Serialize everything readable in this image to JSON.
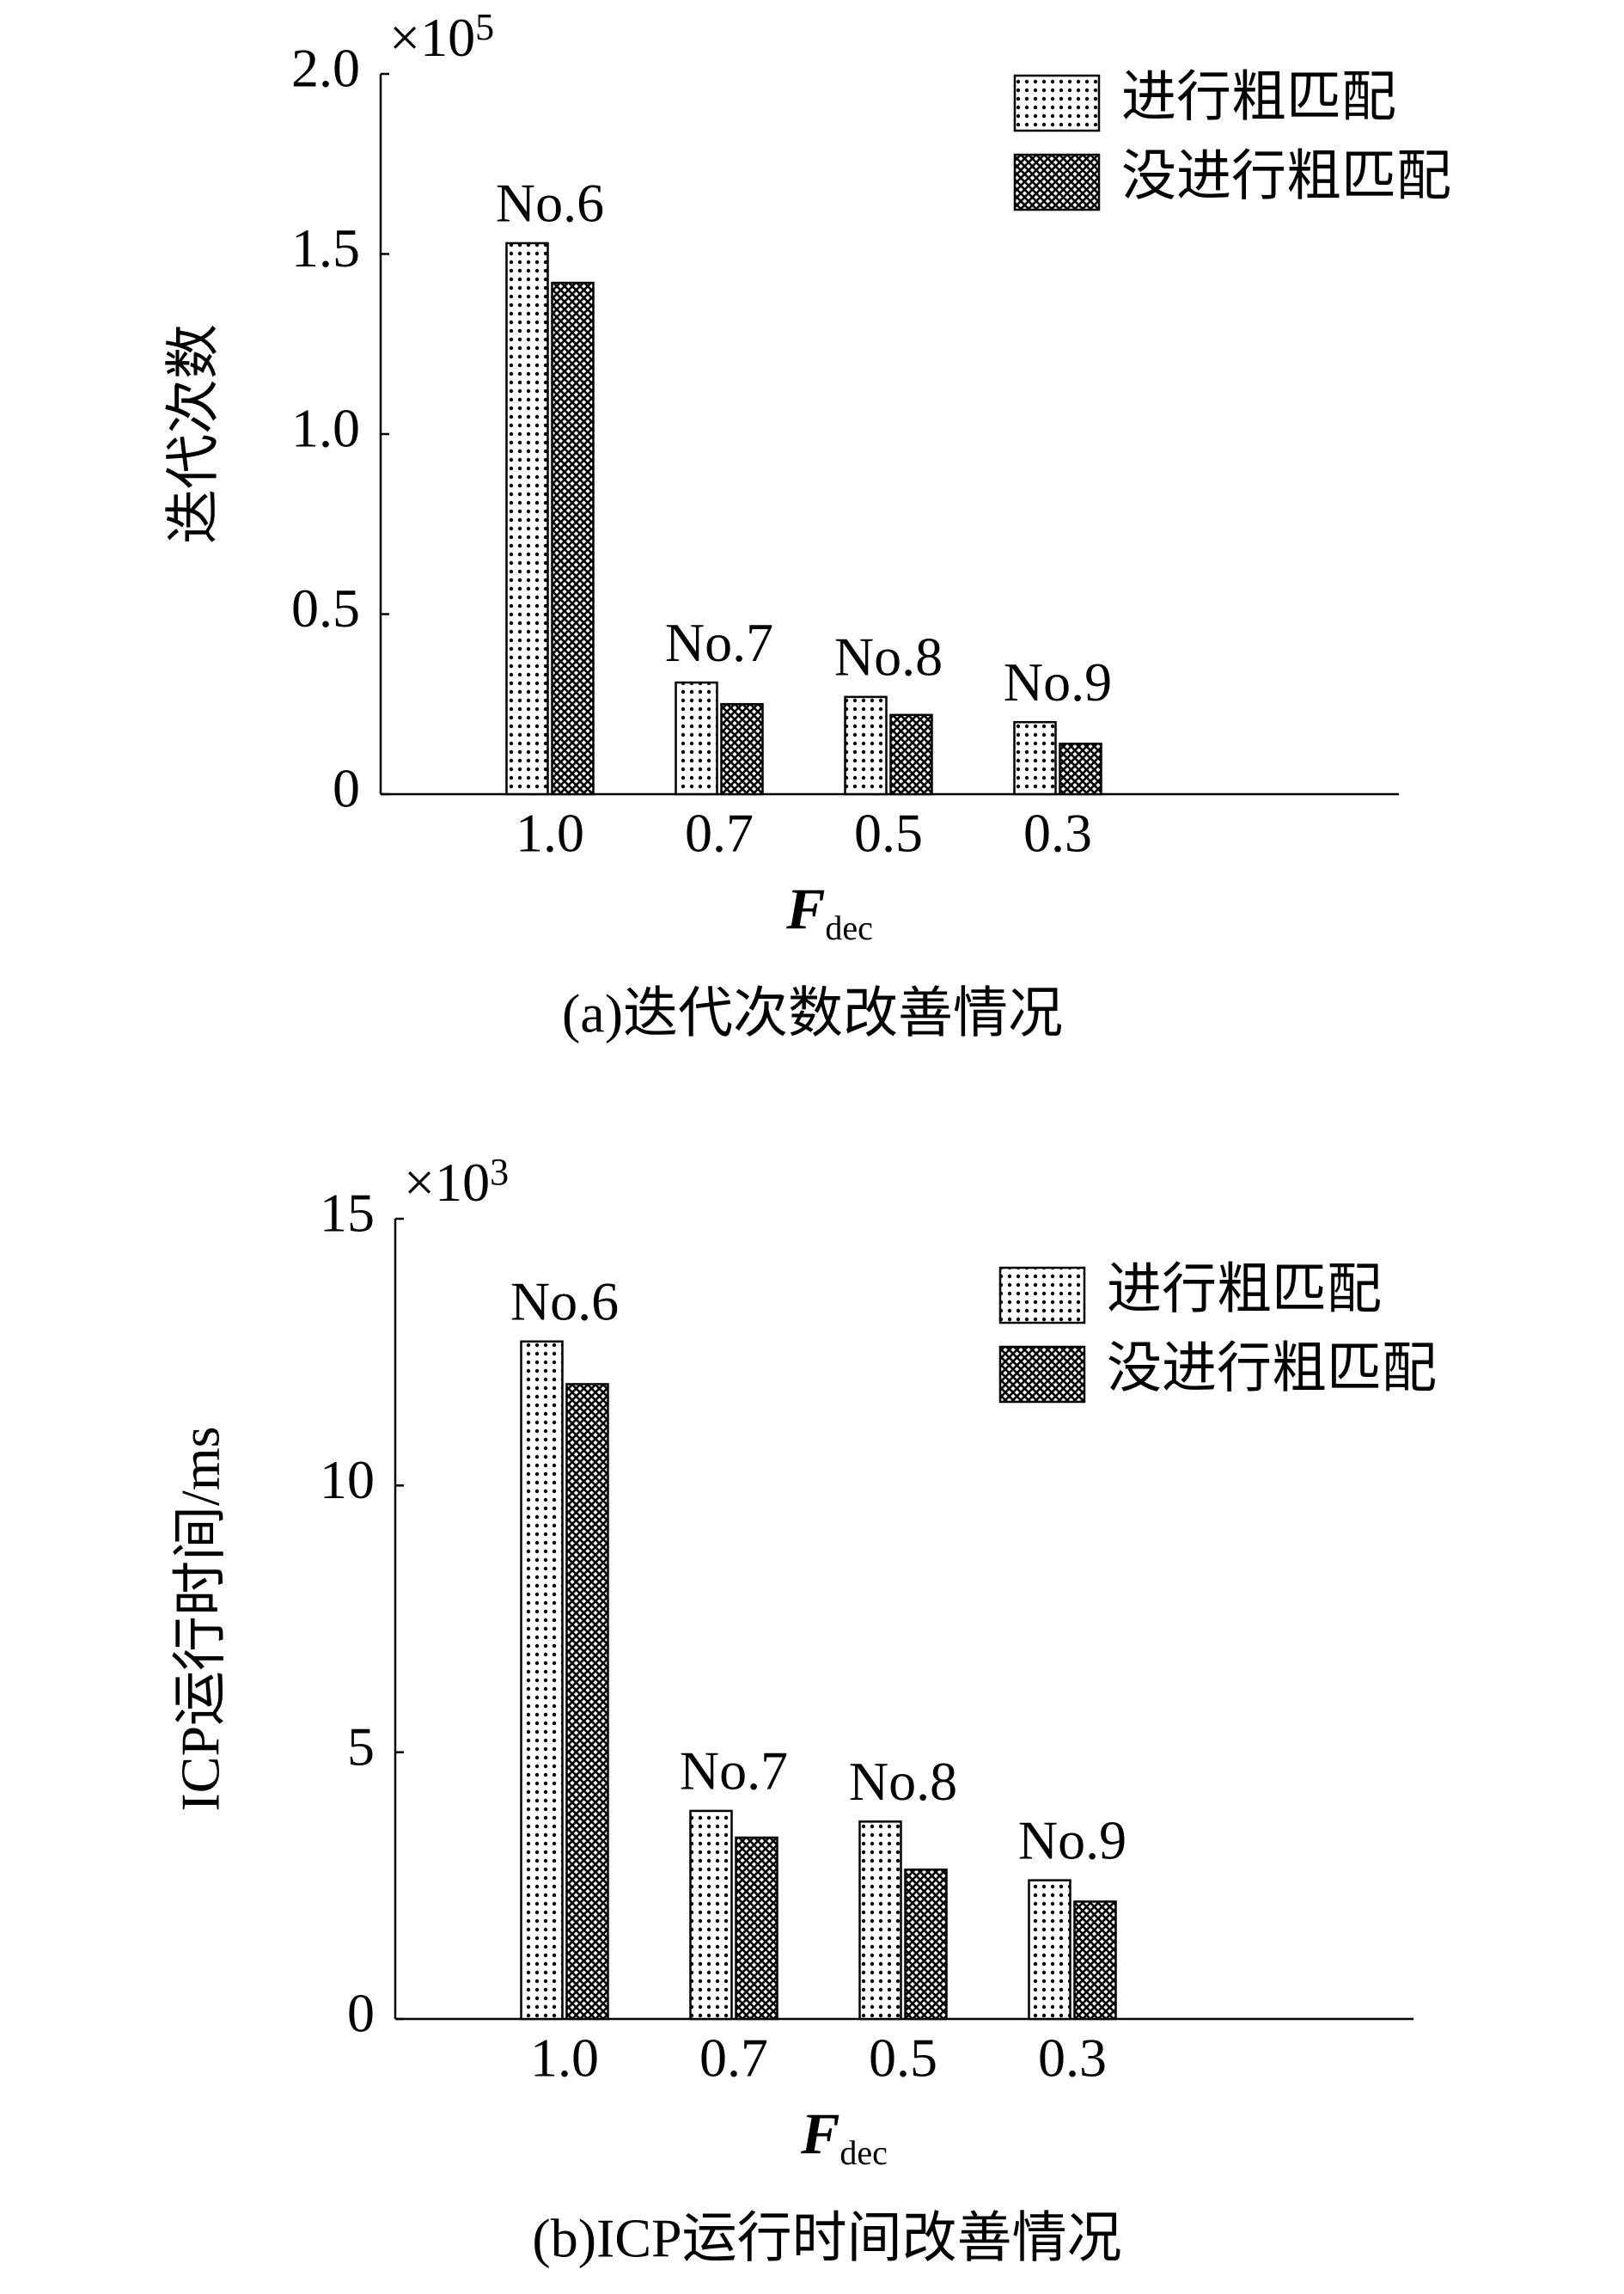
{
  "chart_data": [
    {
      "type": "bar",
      "y_multiplier": "×10",
      "y_multiplier_exp": "5",
      "ylabel": "迭代次数",
      "xlabel": "F",
      "xlabel_sub": "dec",
      "caption": "(a)迭代次数改善情况",
      "categories": [
        "1.0",
        "0.7",
        "0.5",
        "0.3"
      ],
      "annotations": [
        "No.6",
        "No.7",
        "No.8",
        "No.9"
      ],
      "series": [
        {
          "name": "进行粗匹配",
          "color": "#000000",
          "pattern": "dots",
          "values": [
            1.53,
            0.31,
            0.27,
            0.2
          ]
        },
        {
          "name": "没进行粗匹配",
          "color": "#000000",
          "pattern": "crosshatch",
          "values": [
            1.42,
            0.25,
            0.22,
            0.14
          ]
        }
      ],
      "ylim": [
        0,
        2
      ],
      "yticks": [
        0,
        0.5,
        {
          "value": 1,
          "label": "1.0"
        },
        1.5,
        {
          "value": 2,
          "label": "2.0"
        }
      ],
      "legend": "upper right"
    },
    {
      "type": "bar",
      "y_multiplier": "×10",
      "y_multiplier_exp": "3",
      "ylabel": "ICP运行时间/ms",
      "xlabel": "F",
      "xlabel_sub": "dec",
      "caption": "(b)ICP运行时间改善情况",
      "categories": [
        "1.0",
        "0.7",
        "0.5",
        "0.3"
      ],
      "annotations": [
        "No.6",
        "No.7",
        "No.8",
        "No.9"
      ],
      "series": [
        {
          "name": "进行粗匹配",
          "color": "#000000",
          "pattern": "dots",
          "values": [
            12.7,
            3.9,
            3.7,
            2.6
          ]
        },
        {
          "name": "没进行粗匹配",
          "color": "#000000",
          "pattern": "crosshatch",
          "values": [
            11.9,
            3.4,
            2.8,
            2.2
          ]
        }
      ],
      "ylim": [
        0,
        15
      ],
      "yticks": [
        0,
        5,
        10,
        15
      ],
      "legend": "upper right"
    }
  ]
}
